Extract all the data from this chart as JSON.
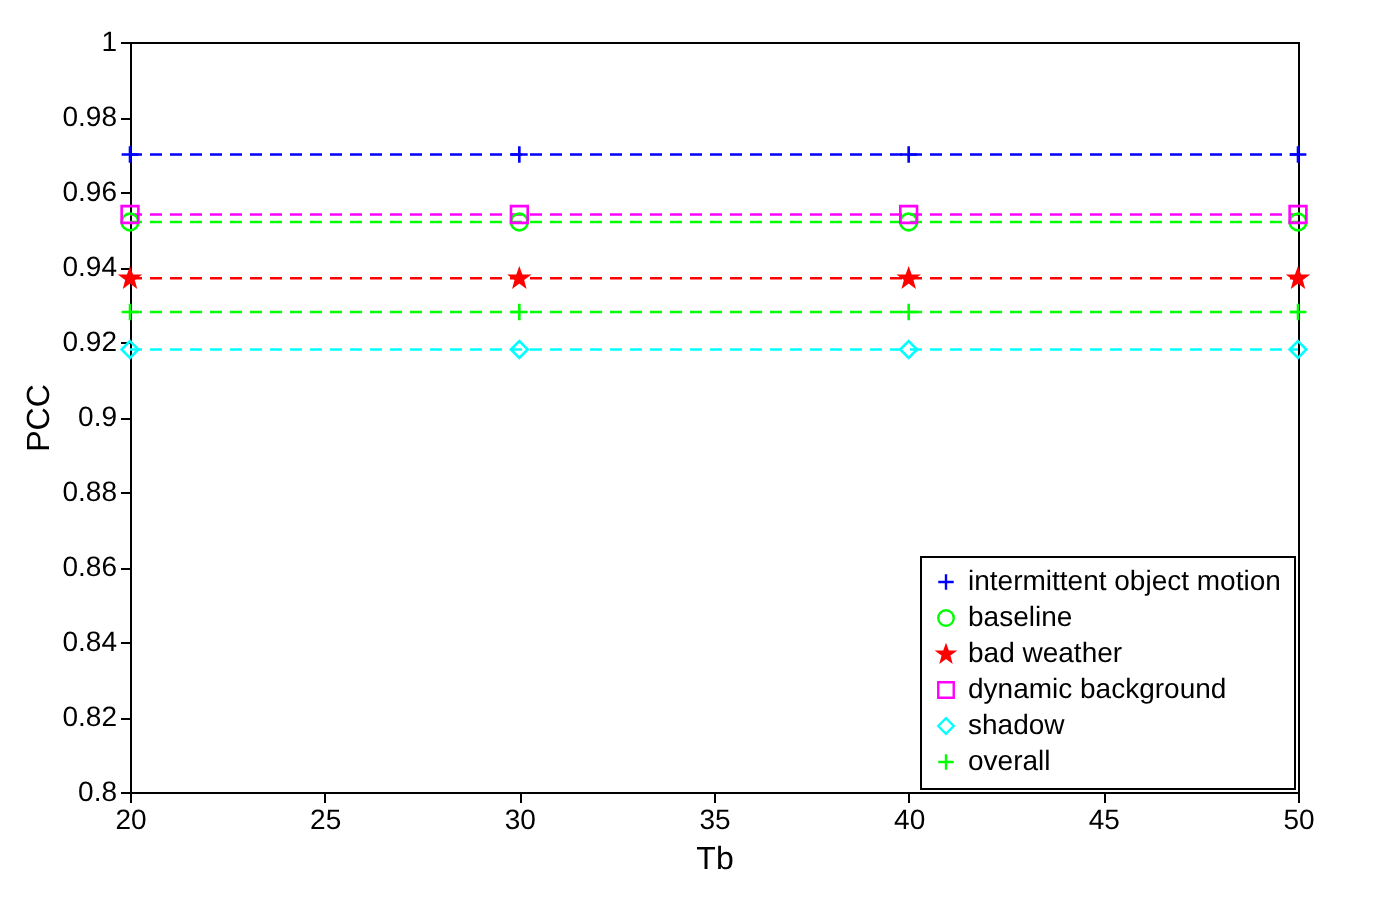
{
  "chart_data": {
    "type": "line",
    "xlabel": "Tb",
    "ylabel": "PCC",
    "x": [
      20,
      30,
      40,
      50
    ],
    "series": [
      {
        "name": "intermittent object motion",
        "color": "#0000ff",
        "marker": "cross",
        "values": [
          0.97,
          0.97,
          0.97,
          0.97
        ]
      },
      {
        "name": "baseline",
        "color": "#00ff00",
        "marker": "circle",
        "values": [
          0.952,
          0.952,
          0.952,
          0.952
        ]
      },
      {
        "name": "bad weather",
        "color": "#ff0000",
        "marker": "star",
        "values": [
          0.937,
          0.937,
          0.937,
          0.937
        ]
      },
      {
        "name": "dynamic background",
        "color": "#ff00ff",
        "marker": "square",
        "values": [
          0.954,
          0.954,
          0.954,
          0.954
        ]
      },
      {
        "name": "shadow",
        "color": "#00ffff",
        "marker": "diamond",
        "values": [
          0.918,
          0.918,
          0.918,
          0.918
        ]
      },
      {
        "name": "overall",
        "color": "#00ff00",
        "marker": "cross",
        "values": [
          0.928,
          0.928,
          0.928,
          0.928
        ]
      }
    ],
    "xlim": [
      20,
      50
    ],
    "xticks": [
      20,
      25,
      30,
      35,
      40,
      45,
      50
    ],
    "ylim": [
      0.8,
      1
    ],
    "yticks": [
      0.8,
      0.82,
      0.84,
      0.86,
      0.88,
      0.9,
      0.92,
      0.94,
      0.96,
      0.98,
      1
    ],
    "grid": false,
    "legend": "bottom right",
    "line_style": "dashed"
  }
}
